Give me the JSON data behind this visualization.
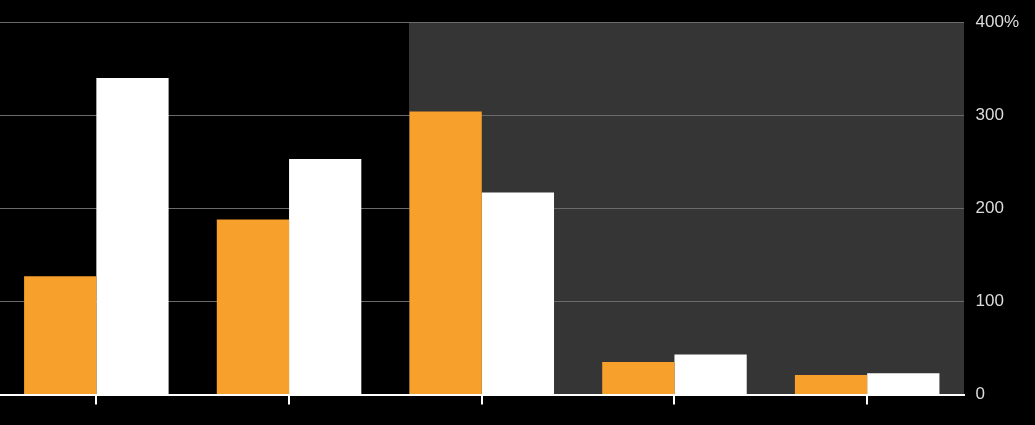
{
  "chart_data": {
    "type": "bar",
    "categories": [
      null,
      null,
      null,
      null,
      null
    ],
    "series": [
      {
        "color": "#f7a02b",
        "values": [
          127,
          188,
          304,
          35,
          21
        ]
      },
      {
        "color": "#ffffff",
        "values": [
          340,
          253,
          217,
          43,
          23
        ]
      }
    ],
    "ylim": [
      0,
      400
    ],
    "yticks": [
      0,
      100,
      200,
      300,
      {
        "value": 400,
        "label": "400%"
      }
    ],
    "grid": "y",
    "legend": false
  }
}
